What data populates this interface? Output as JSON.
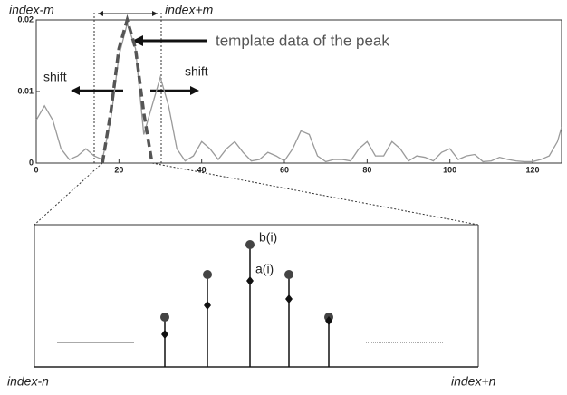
{
  "chart_data": {
    "type": "line",
    "annotations": [
      "index-m",
      "index+m",
      "template data of the peak",
      "shift",
      "shift",
      "b(i)",
      "a(i)",
      "index-n",
      "index+n"
    ],
    "xlim": [
      0,
      127
    ],
    "ylim": [
      0,
      0.02
    ],
    "xticks": [
      0,
      20,
      40,
      60,
      80,
      100,
      120
    ],
    "yticks": [
      0,
      0.01,
      0.02
    ],
    "series": [
      {
        "color": "#9a9a9a",
        "x": [
          0,
          2,
          4,
          6,
          8,
          10,
          12,
          14,
          16,
          18,
          20,
          22,
          24,
          26,
          28,
          30,
          32,
          34,
          36,
          38,
          40,
          42,
          44,
          46,
          48,
          50,
          52,
          54,
          56,
          58,
          60,
          62,
          64,
          66,
          68,
          70,
          72,
          74,
          76,
          78,
          80,
          82,
          84,
          86,
          88,
          90,
          92,
          94,
          96,
          98,
          100,
          102,
          104,
          106,
          108,
          110,
          112,
          114,
          116,
          118,
          120,
          122,
          124,
          126,
          127
        ],
        "values": [
          0.006,
          0.008,
          0.006,
          0.002,
          0.0005,
          0.001,
          0.002,
          0.001,
          0.0005,
          0.006,
          0.015,
          0.0195,
          0.016,
          0.004,
          0.008,
          0.012,
          0.008,
          0.002,
          0.0003,
          0.001,
          0.003,
          0.002,
          0.0005,
          0.002,
          0.003,
          0.0015,
          0.0003,
          0.0005,
          0.0015,
          0.001,
          0.0003,
          0.002,
          0.0045,
          0.004,
          0.001,
          0.0002,
          0.0005,
          0.0005,
          0.0003,
          0.002,
          0.003,
          0.001,
          0.001,
          0.003,
          0.002,
          0.0003,
          0.001,
          0.0008,
          0.0003,
          0.0015,
          0.002,
          0.0005,
          0.001,
          0.0012,
          0.0002,
          0.0003,
          0.0008,
          0.0005,
          0.0003,
          0.0002,
          0.0002,
          0.0005,
          0.001,
          0.003,
          0.005
        ]
      },
      {
        "color": "#555555",
        "dashed": true,
        "x": [
          16,
          18,
          20,
          22,
          24,
          26,
          28
        ],
        "values": [
          0,
          0.007,
          0.016,
          0.02,
          0.016,
          0.007,
          0
        ]
      }
    ]
  }
}
